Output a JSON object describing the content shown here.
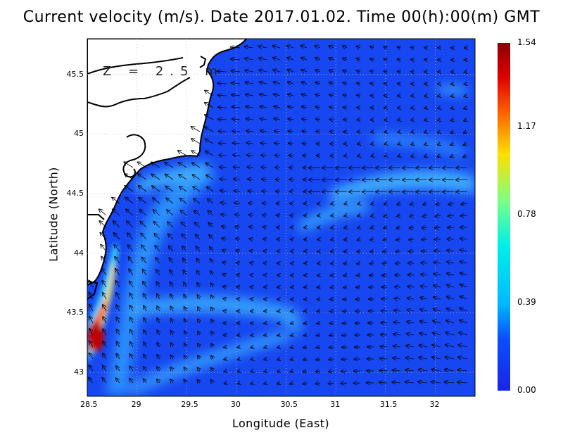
{
  "title": "Current velocity (m/s). Date 2017.01.02. Time 00(h):00(m) GMT",
  "depth_label": "Z = 2.5 m",
  "axes": {
    "xlabel": "Longitude (East)",
    "ylabel": "Latitude (North)",
    "xticks": [
      "28.5",
      "29",
      "29.5",
      "30",
      "30.5",
      "31",
      "31.5",
      "32"
    ],
    "yticks": [
      "43",
      "43.5",
      "44",
      "44.5",
      "45",
      "45.5"
    ],
    "x_values": [
      28.5,
      29,
      29.5,
      30,
      30.5,
      31,
      31.5,
      32
    ],
    "y_values": [
      43,
      43.5,
      44,
      44.5,
      45,
      45.5
    ],
    "xlim": [
      28.5,
      32.4
    ],
    "ylim": [
      42.8,
      45.8
    ],
    "grid": true
  },
  "colorbar": {
    "labels": [
      "1.54",
      "1.17",
      "0.78",
      "0.39",
      "0.00"
    ],
    "values": [
      1.54,
      1.17,
      0.78,
      0.39,
      0.0
    ],
    "colors": [
      "#8b0000",
      "#ff2000",
      "#ffd800",
      "#00e8ff",
      "#0044ff",
      "#1a24e8"
    ]
  },
  "colors": {
    "sea": "#1747f0",
    "land": "#ffffff",
    "coast": "#000000",
    "grid": "#bfbfbf"
  }
}
